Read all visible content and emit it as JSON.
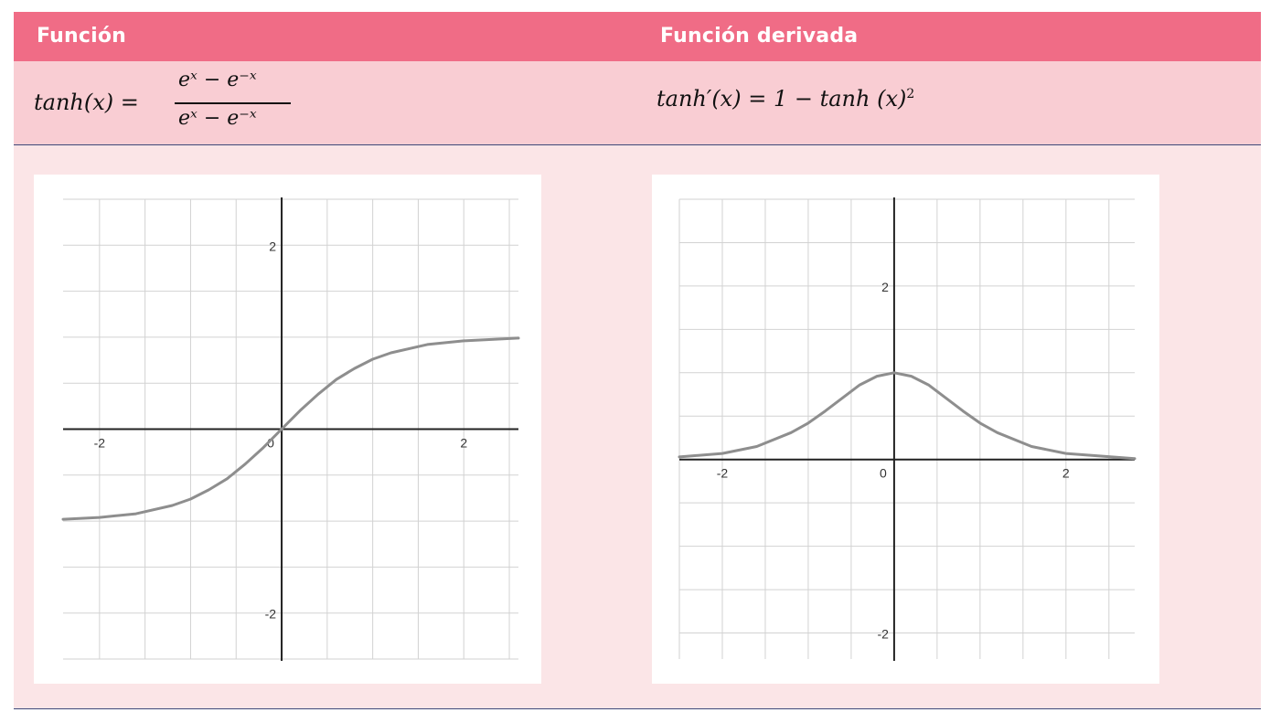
{
  "header": {
    "col1": "Función",
    "col2": "Función derivada"
  },
  "formulas": {
    "tanh_lhs": "tanh(x) =",
    "tanh_num": "eˣ −  e⁻ˣ",
    "tanh_den": "eˣ −  e⁻ˣ",
    "deriv_lhs": "tanh′(x) = 1 − tanh (x)",
    "deriv_exp": "2"
  },
  "chart_data": [
    {
      "type": "line",
      "title": "",
      "xlim": [
        -2.4,
        2.6
      ],
      "ylim": [
        -2.5,
        2.5
      ],
      "xticks": [
        -2,
        0,
        2
      ],
      "xtick_labels": [
        "-2",
        "0",
        "2"
      ],
      "yticks": [
        -2,
        2
      ],
      "ytick_labels": [
        "-2",
        "2"
      ],
      "grid": true,
      "grid_step": 0.5,
      "series": [
        {
          "x": [
            -2.4,
            -2.0,
            -1.6,
            -1.2,
            -1.0,
            -0.8,
            -0.6,
            -0.4,
            -0.2,
            0,
            0.2,
            0.4,
            0.6,
            0.8,
            1.0,
            1.2,
            1.6,
            2.0,
            2.6
          ],
          "y": [
            -0.98,
            -0.96,
            -0.92,
            -0.83,
            -0.76,
            -0.66,
            -0.54,
            -0.38,
            -0.2,
            0,
            0.2,
            0.38,
            0.54,
            0.66,
            0.76,
            0.83,
            0.92,
            0.96,
            0.99
          ],
          "color": "#8e8e8e"
        }
      ]
    },
    {
      "type": "line",
      "title": "",
      "xlim": [
        -2.5,
        2.8
      ],
      "ylim": [
        -2.3,
        3.0
      ],
      "xticks": [
        -2,
        0,
        2
      ],
      "xtick_labels": [
        "-2",
        "0",
        "2"
      ],
      "yticks": [
        -2,
        2
      ],
      "ytick_labels": [
        "-2",
        "2"
      ],
      "grid": true,
      "grid_step": 0.5,
      "series": [
        {
          "x": [
            -2.5,
            -2.0,
            -1.6,
            -1.2,
            -1.0,
            -0.8,
            -0.6,
            -0.4,
            -0.2,
            0,
            0.2,
            0.4,
            0.6,
            0.8,
            1.0,
            1.2,
            1.6,
            2.0,
            2.8
          ],
          "y": [
            0.03,
            0.07,
            0.15,
            0.31,
            0.42,
            0.56,
            0.71,
            0.86,
            0.96,
            1.0,
            0.96,
            0.86,
            0.71,
            0.56,
            0.42,
            0.31,
            0.15,
            0.07,
            0.01
          ],
          "color": "#8e8e8e"
        }
      ]
    }
  ]
}
